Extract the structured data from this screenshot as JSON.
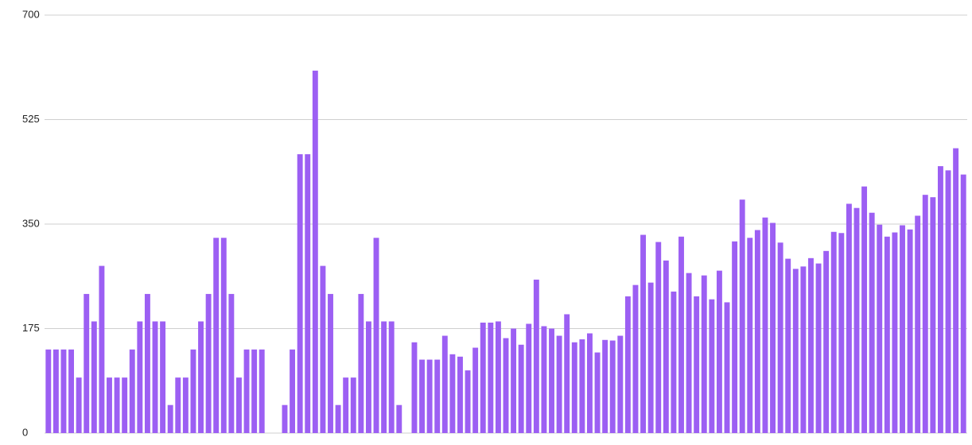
{
  "chart_data": {
    "type": "bar",
    "color": "#9c5ff3",
    "values": [
      140,
      140,
      140,
      140,
      93,
      233,
      187,
      280,
      93,
      93,
      93,
      140,
      187,
      233,
      187,
      187,
      47,
      93,
      93,
      140,
      187,
      233,
      327,
      327,
      233,
      93,
      140,
      140,
      140,
      null,
      null,
      47,
      140,
      467,
      467,
      607,
      280,
      233,
      47,
      93,
      93,
      233,
      187,
      327,
      187,
      187,
      47,
      null,
      152,
      123,
      123,
      123,
      163,
      132,
      128,
      105,
      143,
      185,
      185,
      187,
      159,
      175,
      148,
      183,
      257,
      179,
      175,
      163,
      199,
      152,
      157,
      167,
      135,
      156,
      155,
      163,
      229,
      248,
      332,
      252,
      320,
      289,
      237,
      329,
      268,
      229,
      264,
      224,
      272,
      219,
      321,
      391,
      327,
      340,
      361,
      352,
      319,
      292,
      275,
      279,
      293,
      284,
      305,
      337,
      335,
      384,
      377,
      413,
      369,
      349,
      329,
      336,
      348,
      341,
      364,
      399,
      395,
      447,
      440,
      477,
      433
    ],
    "ylim": [
      0,
      700
    ],
    "yticks": [
      0,
      175,
      350,
      525,
      700
    ],
    "grid": true
  }
}
